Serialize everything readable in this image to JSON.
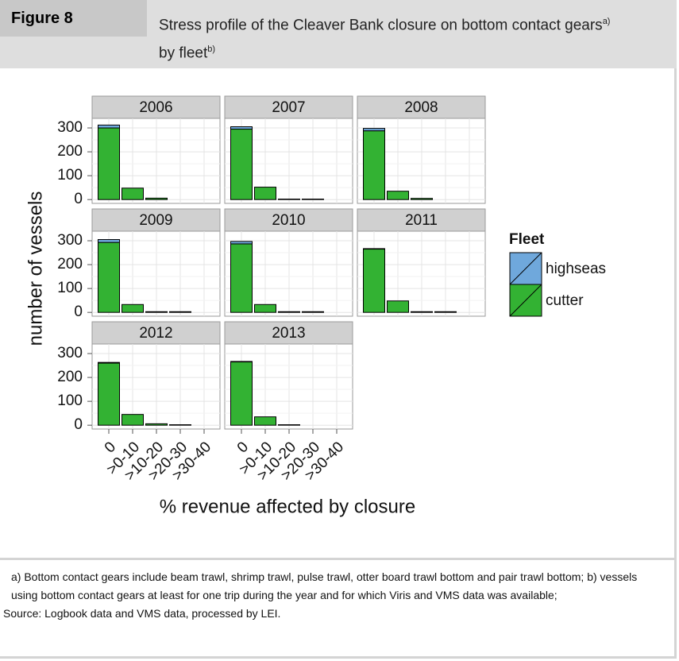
{
  "header": {
    "label": "Figure 8",
    "title": "Stress profile of the Cleaver Bank closure on bottom contact gears",
    "title_note": "a)",
    "title_line2": "by fleet",
    "title_line2_note": "b)"
  },
  "chart_data": {
    "type": "bar",
    "stacked": true,
    "panels": [
      "2006",
      "2007",
      "2008",
      "2009",
      "2010",
      "2011",
      "2012",
      "2013"
    ],
    "categories": [
      "0",
      ">0-10",
      ">10-20",
      ">20-30",
      ">30-40"
    ],
    "series": [
      {
        "name": "cutter",
        "color": "#33b233",
        "values": [
          [
            300,
            48,
            6,
            null,
            null
          ],
          [
            295,
            52,
            2,
            2,
            null
          ],
          [
            288,
            35,
            5,
            null,
            null
          ],
          [
            293,
            33,
            3,
            3,
            null
          ],
          [
            287,
            33,
            3,
            3,
            null
          ],
          [
            265,
            48,
            3,
            3,
            null
          ],
          [
            260,
            45,
            6,
            2,
            null
          ],
          [
            265,
            35,
            2,
            null,
            null
          ]
        ]
      },
      {
        "name": "highseas",
        "color": "#6fa8dc",
        "values": [
          [
            12,
            null,
            null,
            null,
            null
          ],
          [
            10,
            null,
            null,
            null,
            null
          ],
          [
            10,
            null,
            null,
            null,
            null
          ],
          [
            12,
            null,
            null,
            null,
            null
          ],
          [
            10,
            null,
            null,
            null,
            null
          ],
          [
            2,
            null,
            null,
            null,
            null
          ],
          [
            3,
            null,
            null,
            null,
            null
          ],
          [
            2,
            null,
            null,
            null,
            null
          ]
        ]
      }
    ],
    "ylim": [
      -16,
      340
    ],
    "yticks": [
      0,
      100,
      200,
      300
    ],
    "grid": true,
    "ylabel": "number of vessels",
    "xlabel": "% revenue affected by closure",
    "legend_title": "Fleet",
    "legend_position": "right"
  },
  "notes": [
    "a) Bottom contact gears include beam trawl, shrimp trawl, pulse trawl, otter board trawl bottom and pair trawl bottom; b) vessels using bottom contact gears at least for one trip during the year and for which Viris and VMS data was available;"
  ],
  "source": "Source: Logbook data and VMS data, processed by LEI."
}
